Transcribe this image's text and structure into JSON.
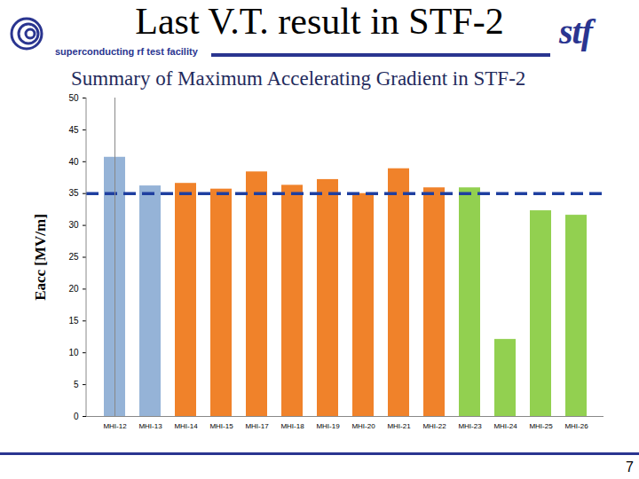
{
  "slide": {
    "title": "Last V.T. result in STF-2",
    "subtitle": "superconducting rf test facility",
    "logo": "stf",
    "page": 7
  },
  "chart_data": {
    "type": "bar",
    "title": "Summary of Maximum Accelerating Gradient in STF-2",
    "y_label": "Eacc [MV/m]",
    "categories": [
      "MHI-12",
      "MHI-13",
      "MHI-14",
      "MHI-15",
      "MHI-17",
      "MHI-18",
      "MHI-19",
      "MHI-20",
      "MHI-21",
      "MHI-22",
      "MHI-23",
      "MHI-24",
      "MHI-25",
      "MHI-26"
    ],
    "values": [
      40.7,
      36.2,
      36.6,
      35.7,
      38.4,
      36.3,
      37.2,
      35.0,
      38.9,
      35.9,
      35.9,
      12.1,
      32.3,
      31.6
    ],
    "colors": [
      "#95b3d7",
      "#95b3d7",
      "#f0822a",
      "#f0822a",
      "#f0822a",
      "#f0822a",
      "#f0822a",
      "#f0822a",
      "#f0822a",
      "#f0822a",
      "#92d050",
      "#92d050",
      "#92d050",
      "#92d050"
    ],
    "reference_line": 35,
    "ylim": [
      0,
      50
    ],
    "yticks": [
      0,
      5,
      10,
      15,
      20,
      25,
      30,
      35,
      40,
      45,
      50
    ],
    "grid": false
  }
}
